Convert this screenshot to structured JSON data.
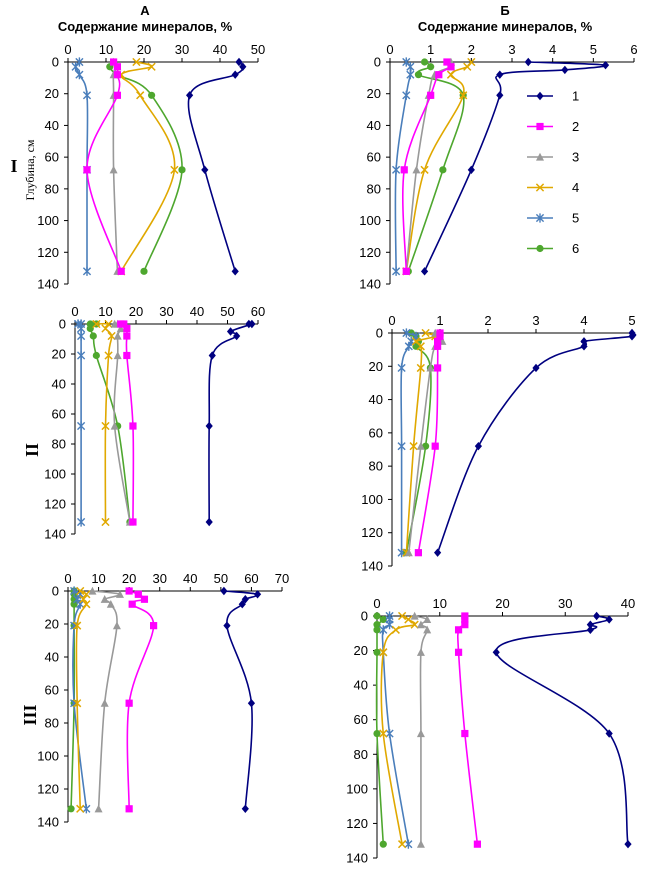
{
  "headers": {
    "col_a_letter": "А",
    "col_b_letter": "Б",
    "col_a_title": "Содержание минералов, %",
    "col_b_title": "Содержание минералов, %"
  },
  "row_labels": [
    "I",
    "II",
    "III"
  ],
  "y_label": "Глубина, см",
  "legend": {
    "items": [
      {
        "label": "1",
        "marker": "diamond",
        "color": "#000080"
      },
      {
        "label": "2",
        "marker": "square",
        "color": "#ff00ff"
      },
      {
        "label": "3",
        "marker": "triangle",
        "color": "#999999"
      },
      {
        "label": "4",
        "marker": "x",
        "color": "#e0a800"
      },
      {
        "label": "5",
        "marker": "star",
        "color": "#4a7ebb"
      },
      {
        "label": "6",
        "marker": "circle",
        "color": "#4ea72e"
      }
    ]
  },
  "chart_data": [
    {
      "id": "I-A",
      "type": "line",
      "xlim": [
        0,
        50
      ],
      "xticks": [
        0,
        10,
        20,
        30,
        40,
        50
      ],
      "ylim": [
        0,
        140
      ],
      "yticks": [
        0,
        20,
        40,
        60,
        80,
        100,
        120,
        140
      ],
      "y_inverted": true,
      "series": [
        {
          "name": "1",
          "x": [
            45,
            46,
            44,
            32,
            36,
            44
          ],
          "y": [
            0,
            3,
            8,
            21,
            68,
            132
          ]
        },
        {
          "name": "2",
          "x": [
            12,
            13,
            13,
            13,
            5,
            14
          ],
          "y": [
            0,
            3,
            8,
            21,
            68,
            132
          ]
        },
        {
          "name": "3",
          "x": [
            12,
            13,
            12,
            12,
            12,
            13
          ],
          "y": [
            0,
            3,
            8,
            21,
            68,
            132
          ]
        },
        {
          "name": "4",
          "x": [
            18,
            22,
            14,
            19,
            28,
            14
          ],
          "y": [
            0,
            3,
            8,
            21,
            68,
            132
          ]
        },
        {
          "name": "5",
          "x": [
            3,
            2,
            3,
            5,
            5,
            5
          ],
          "y": [
            0,
            3,
            8,
            21,
            68,
            132
          ]
        },
        {
          "name": "6",
          "x": [
            12,
            11,
            13,
            22,
            30,
            20
          ],
          "y": [
            0,
            3,
            8,
            21,
            68,
            132
          ]
        }
      ]
    },
    {
      "id": "I-Б",
      "type": "line",
      "xlim": [
        0,
        6
      ],
      "xticks": [
        0,
        1,
        2,
        3,
        4,
        5,
        6
      ],
      "ylim": [
        0,
        140
      ],
      "yticks": [
        0,
        20,
        40,
        60,
        80,
        100,
        120,
        140
      ],
      "y_inverted": true,
      "series": [
        {
          "name": "1",
          "x": [
            3.4,
            5.3,
            4.3,
            2.7,
            2.7,
            2.0,
            0.85
          ],
          "y": [
            0,
            2,
            5,
            8,
            21,
            68,
            132
          ]
        },
        {
          "name": "2",
          "x": [
            1.4,
            1.5,
            1.2,
            1.0,
            0.35,
            0.4
          ],
          "y": [
            0,
            3,
            8,
            21,
            68,
            132
          ]
        },
        {
          "name": "3",
          "x": [
            1.5,
            1.5,
            1.1,
            0.95,
            0.65,
            0.4
          ],
          "y": [
            0,
            3,
            8,
            21,
            68,
            132
          ]
        },
        {
          "name": "4",
          "x": [
            2.0,
            1.9,
            1.5,
            1.8,
            0.85,
            0.4
          ],
          "y": [
            0,
            3,
            8,
            21,
            68,
            132
          ]
        },
        {
          "name": "5",
          "x": [
            0.4,
            0.5,
            0.5,
            0.4,
            0.15,
            0.15
          ],
          "y": [
            0,
            3,
            8,
            21,
            68,
            132
          ]
        },
        {
          "name": "6",
          "x": [
            0.85,
            1.0,
            0.7,
            1.8,
            1.3,
            0.45
          ],
          "y": [
            0,
            3,
            8,
            21,
            68,
            132
          ]
        }
      ]
    },
    {
      "id": "II-A",
      "type": "line",
      "xlim": [
        0,
        60
      ],
      "xticks": [
        0,
        10,
        20,
        30,
        40,
        50,
        60
      ],
      "ylim": [
        0,
        140
      ],
      "yticks": [
        0,
        20,
        40,
        60,
        80,
        100,
        120,
        140
      ],
      "y_inverted": true,
      "series": [
        {
          "name": "1",
          "x": [
            57,
            58,
            51,
            53,
            45,
            44,
            44
          ],
          "y": [
            0,
            0,
            5,
            8,
            21,
            68,
            132
          ]
        },
        {
          "name": "2",
          "x": [
            15,
            16,
            17,
            17,
            17,
            19,
            19
          ],
          "y": [
            0,
            0,
            3,
            8,
            21,
            68,
            132
          ]
        },
        {
          "name": "3",
          "x": [
            13,
            14,
            15,
            14,
            14,
            13,
            18
          ],
          "y": [
            0,
            0,
            3,
            8,
            21,
            68,
            132
          ]
        },
        {
          "name": "4",
          "x": [
            7,
            11,
            10,
            12,
            11,
            10,
            10
          ],
          "y": [
            0,
            0,
            3,
            8,
            21,
            68,
            132
          ]
        },
        {
          "name": "5",
          "x": [
            1,
            2,
            2,
            2,
            2,
            2,
            2
          ],
          "y": [
            0,
            0,
            3,
            8,
            21,
            68,
            132
          ]
        },
        {
          "name": "6",
          "x": [
            5,
            7,
            5,
            6,
            7,
            14,
            18
          ],
          "y": [
            0,
            0,
            3,
            8,
            21,
            68,
            132
          ]
        }
      ]
    },
    {
      "id": "II-Б",
      "type": "line",
      "xlim": [
        0,
        5
      ],
      "xticks": [
        0,
        1,
        2,
        3,
        4,
        5
      ],
      "ylim": [
        0,
        140
      ],
      "yticks": [
        0,
        20,
        40,
        60,
        80,
        100,
        120,
        140
      ],
      "y_inverted": true,
      "series": [
        {
          "name": "1",
          "x": [
            5.0,
            5.0,
            4.0,
            4.0,
            3.0,
            1.8,
            0.95
          ],
          "y": [
            0,
            2,
            5,
            8,
            21,
            68,
            132
          ]
        },
        {
          "name": "2",
          "x": [
            1.0,
            1.0,
            0.95,
            0.95,
            0.95,
            0.9,
            0.55
          ],
          "y": [
            0,
            2,
            5,
            8,
            21,
            68,
            132
          ]
        },
        {
          "name": "3",
          "x": [
            0.9,
            1.0,
            1.05,
            0.9,
            0.8,
            0.6,
            0.35
          ],
          "y": [
            0,
            2,
            5,
            8,
            21,
            68,
            132
          ]
        },
        {
          "name": "4",
          "x": [
            0.7,
            0.9,
            0.5,
            0.6,
            0.6,
            0.45,
            0.3
          ],
          "y": [
            0,
            2,
            5,
            8,
            21,
            68,
            132
          ]
        },
        {
          "name": "5",
          "x": [
            0.3,
            0.5,
            0.4,
            0.35,
            0.2,
            0.2,
            0.2
          ],
          "y": [
            0,
            2,
            5,
            8,
            21,
            68,
            132
          ]
        },
        {
          "name": "6",
          "x": [
            0.4,
            0.5,
            0.55,
            0.5,
            0.8,
            0.7,
            0.3
          ],
          "y": [
            0,
            2,
            5,
            8,
            21,
            68,
            132
          ]
        }
      ]
    },
    {
      "id": "III-A",
      "type": "line",
      "xlim": [
        0,
        70
      ],
      "xticks": [
        0,
        10,
        20,
        30,
        40,
        50,
        60,
        70
      ],
      "ylim": [
        0,
        140
      ],
      "yticks": [
        0,
        20,
        40,
        60,
        80,
        100,
        120,
        140
      ],
      "y_inverted": true,
      "series": [
        {
          "name": "1",
          "x": [
            51,
            62,
            58,
            57,
            52,
            60,
            58
          ],
          "y": [
            0,
            2,
            5,
            8,
            21,
            68,
            132
          ]
        },
        {
          "name": "2",
          "x": [
            20,
            23,
            25,
            21,
            28,
            20,
            20
          ],
          "y": [
            0,
            2,
            5,
            8,
            21,
            68,
            132
          ]
        },
        {
          "name": "3",
          "x": [
            8,
            17,
            12,
            14,
            16,
            12,
            10
          ],
          "y": [
            0,
            2,
            5,
            8,
            21,
            68,
            132
          ]
        },
        {
          "name": "4",
          "x": [
            4,
            6,
            5,
            6,
            3,
            3,
            4
          ],
          "y": [
            0,
            2,
            5,
            8,
            21,
            68,
            132
          ]
        },
        {
          "name": "5",
          "x": [
            2,
            4,
            3,
            4,
            2,
            2,
            6
          ],
          "y": [
            0,
            2,
            5,
            8,
            21,
            68,
            132
          ]
        },
        {
          "name": "6",
          "x": [
            2,
            2,
            2,
            2,
            2,
            2,
            1
          ],
          "y": [
            0,
            2,
            5,
            8,
            21,
            68,
            132
          ]
        }
      ]
    },
    {
      "id": "III-Б",
      "type": "line",
      "xlim": [
        0,
        40
      ],
      "xticks": [
        0,
        10,
        20,
        30,
        40
      ],
      "ylim": [
        0,
        140
      ],
      "yticks": [
        0,
        20,
        40,
        60,
        80,
        100,
        120,
        140
      ],
      "y_inverted": true,
      "series": [
        {
          "name": "1",
          "x": [
            35,
            37,
            34,
            34,
            19,
            37,
            40
          ],
          "y": [
            0,
            2,
            5,
            8,
            21,
            68,
            132
          ]
        },
        {
          "name": "2",
          "x": [
            14,
            14,
            14,
            13,
            13,
            14,
            16
          ],
          "y": [
            0,
            2,
            5,
            8,
            21,
            68,
            132
          ]
        },
        {
          "name": "3",
          "x": [
            6,
            8,
            7,
            8,
            7,
            7,
            7
          ],
          "y": [
            0,
            2,
            5,
            8,
            21,
            68,
            132
          ]
        },
        {
          "name": "4",
          "x": [
            4,
            5,
            6,
            3,
            1,
            1,
            4
          ],
          "y": [
            0,
            2,
            5,
            8,
            21,
            68,
            132
          ]
        },
        {
          "name": "5",
          "x": [
            2,
            2,
            2,
            1,
            1,
            2,
            5
          ],
          "y": [
            0,
            2,
            5,
            8,
            21,
            68,
            132
          ]
        },
        {
          "name": "6",
          "x": [
            0,
            1,
            0,
            0,
            0,
            0,
            1
          ],
          "y": [
            0,
            2,
            5,
            8,
            21,
            68,
            132
          ]
        }
      ]
    }
  ]
}
